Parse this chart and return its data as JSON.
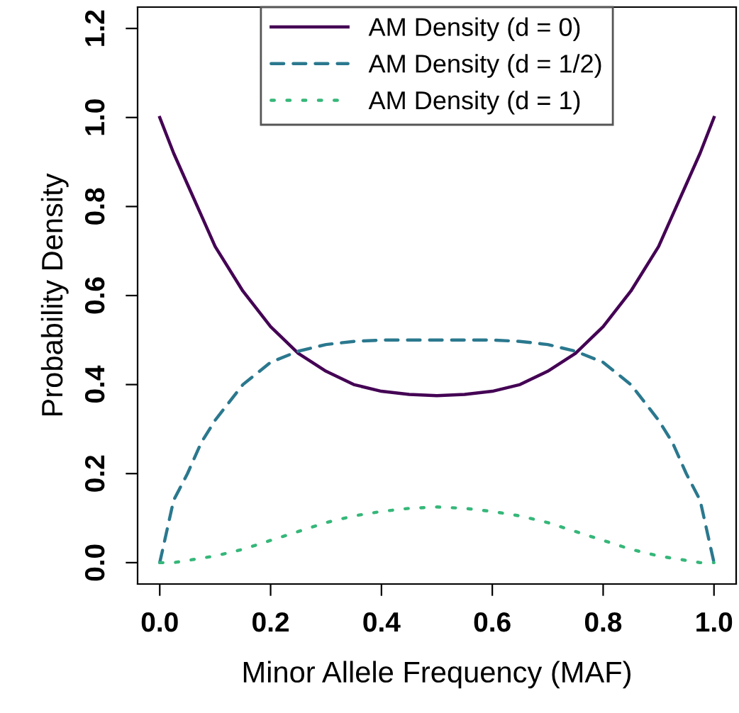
{
  "chart_data": {
    "type": "line",
    "xlabel": "Minor Allele Frequency (MAF)",
    "ylabel": "Probability Density",
    "x": [
      0,
      0.025,
      0.05,
      0.075,
      0.1,
      0.15,
      0.2,
      0.25,
      0.3,
      0.35,
      0.4,
      0.45,
      0.5,
      0.55,
      0.6,
      0.65,
      0.7,
      0.75,
      0.8,
      0.85,
      0.9,
      0.925,
      0.95,
      0.975,
      1
    ],
    "series": [
      {
        "name": "AM Density (d = 0)",
        "color": "#440154",
        "line_style": "solid",
        "values": [
          1,
          0.92,
          0.85,
          0.78,
          0.71,
          0.61,
          0.53,
          0.47,
          0.43,
          0.4,
          0.385,
          0.378,
          0.375,
          0.378,
          0.385,
          0.4,
          0.43,
          0.47,
          0.53,
          0.61,
          0.71,
          0.78,
          0.85,
          0.92,
          1
        ]
      },
      {
        "name": "AM Density (d = 1/2)",
        "color": "#2a788e",
        "line_style": "dashed",
        "values": [
          0,
          0.14,
          0.2,
          0.27,
          0.32,
          0.4,
          0.45,
          0.475,
          0.49,
          0.497,
          0.5,
          0.5,
          0.5,
          0.5,
          0.5,
          0.497,
          0.49,
          0.475,
          0.45,
          0.4,
          0.32,
          0.27,
          0.2,
          0.14,
          0
        ]
      },
      {
        "name": "AM Density (d = 1)",
        "color": "#35b779",
        "line_style": "dotted",
        "values": [
          0,
          0,
          0.005,
          0.01,
          0.015,
          0.03,
          0.05,
          0.07,
          0.09,
          0.105,
          0.115,
          0.122,
          0.125,
          0.122,
          0.115,
          0.105,
          0.09,
          0.07,
          0.05,
          0.03,
          0.015,
          0.01,
          0.005,
          0,
          0
        ]
      }
    ],
    "xlim": [
      -0.04,
      1.04
    ],
    "ylim": [
      -0.048,
      1.248
    ],
    "xticks": [
      {
        "value": 0,
        "label": "0.0"
      },
      {
        "value": 0.2,
        "label": "0.2"
      },
      {
        "value": 0.4,
        "label": "0.4"
      },
      {
        "value": 0.6,
        "label": "0.6"
      },
      {
        "value": 0.8,
        "label": "0.8"
      },
      {
        "value": 1,
        "label": "1.0"
      }
    ],
    "yticks": [
      {
        "value": 0,
        "label": "0.0"
      },
      {
        "value": 0.2,
        "label": "0.2"
      },
      {
        "value": 0.4,
        "label": "0.4"
      },
      {
        "value": 0.6,
        "label": "0.6"
      },
      {
        "value": 0.8,
        "label": "0.8"
      },
      {
        "value": 1,
        "label": "1.0"
      },
      {
        "value": 1.2,
        "label": "1.2"
      }
    ],
    "legend": "top",
    "grid": false
  }
}
